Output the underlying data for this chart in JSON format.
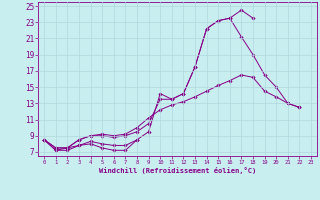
{
  "xlabel": "Windchill (Refroidissement éolien,°C)",
  "background_color": "#c8eef0",
  "grid_color": "#b0d8dc",
  "line_color": "#880088",
  "xlim": [
    -0.5,
    23.5
  ],
  "ylim": [
    6.5,
    25.5
  ],
  "xticks": [
    0,
    1,
    2,
    3,
    4,
    5,
    6,
    7,
    8,
    9,
    10,
    11,
    12,
    13,
    14,
    15,
    16,
    17,
    18,
    19,
    20,
    21,
    22,
    23
  ],
  "yticks": [
    7,
    9,
    11,
    13,
    15,
    17,
    19,
    21,
    23,
    25
  ],
  "series": [
    {
      "x": [
        0,
        1,
        2,
        3,
        4,
        5,
        6,
        7,
        8
      ],
      "y": [
        8.5,
        7.2,
        7.2,
        7.8,
        8.0,
        7.5,
        7.2,
        7.2,
        8.5
      ]
    },
    {
      "x": [
        0,
        1,
        2,
        3,
        4,
        5,
        6,
        7,
        8,
        9,
        10,
        11,
        12,
        13,
        14,
        15,
        16,
        17,
        18
      ],
      "y": [
        8.5,
        7.2,
        7.5,
        7.8,
        8.3,
        8.0,
        7.8,
        7.8,
        8.5,
        9.5,
        14.2,
        13.5,
        14.2,
        17.5,
        22.2,
        23.2,
        23.5,
        24.5,
        23.5
      ]
    },
    {
      "x": [
        0,
        1,
        2,
        3,
        4,
        5,
        6,
        7,
        8,
        9,
        10,
        11,
        12,
        13,
        14,
        15,
        16,
        17,
        18,
        19,
        20,
        21,
        22
      ],
      "y": [
        8.5,
        7.5,
        7.5,
        8.5,
        9.0,
        9.0,
        8.8,
        9.0,
        9.5,
        10.5,
        13.5,
        13.5,
        14.2,
        17.5,
        22.2,
        23.2,
        23.5,
        21.2,
        19.0,
        16.5,
        15.0,
        13.0,
        12.5
      ]
    },
    {
      "x": [
        0,
        1,
        2,
        3,
        4,
        5,
        6,
        7,
        8,
        9,
        10,
        11,
        12,
        13,
        14,
        15,
        16,
        17,
        18,
        19,
        20,
        21,
        22
      ],
      "y": [
        8.5,
        7.5,
        7.5,
        8.5,
        9.0,
        9.2,
        9.0,
        9.2,
        10.0,
        11.2,
        12.2,
        12.8,
        13.2,
        13.8,
        14.5,
        15.2,
        15.8,
        16.5,
        16.2,
        14.5,
        13.8,
        13.0,
        12.5
      ]
    }
  ]
}
